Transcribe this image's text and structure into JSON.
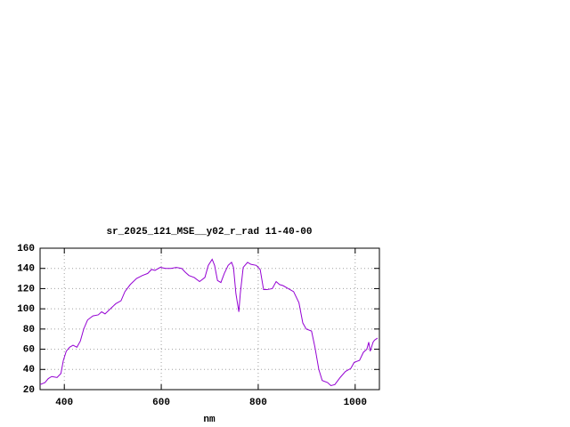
{
  "chart_data": {
    "type": "line",
    "title": "sr_2025_121_MSE__y02_r_rad 11-40-00",
    "x_label": "nm",
    "xlim": [
      350,
      1050
    ],
    "xticks": [
      400,
      600,
      800,
      1000
    ],
    "ylim": [
      20,
      160
    ],
    "yticks": [
      20,
      40,
      60,
      80,
      100,
      120,
      140,
      160
    ],
    "grid": true,
    "series": [
      {
        "color": "#9400d3",
        "x": [
          350,
          360,
          367,
          374,
          385,
          393,
          398,
          404,
          411,
          418,
          426,
          433,
          440,
          448,
          459,
          470,
          477,
          484,
          495,
          506,
          517,
          525,
          536,
          549,
          561,
          572,
          580,
          587,
          598,
          609,
          620,
          631,
          642,
          650,
          657,
          668,
          679,
          690,
          697,
          705,
          710,
          716,
          723,
          730,
          738,
          745,
          749,
          754,
          760,
          763,
          769,
          778,
          785,
          796,
          804,
          811,
          818,
          829,
          837,
          844,
          851,
          862,
          873,
          884,
          892,
          899,
          910,
          917,
          925,
          932,
          943,
          950,
          958,
          969,
          980,
          991,
          998,
          1009,
          1017,
          1024,
          1028,
          1031,
          1037,
          1040,
          1046
        ],
        "values": [
          25,
          27,
          31,
          33,
          32,
          36,
          49,
          58,
          62,
          64,
          62,
          68,
          80,
          89,
          93,
          94,
          97,
          95,
          100,
          105,
          108,
          117,
          124,
          130,
          133,
          135,
          139,
          138,
          141,
          140,
          140,
          141,
          140,
          136,
          133,
          131,
          127,
          131,
          143,
          149,
          143,
          128,
          126,
          135,
          143,
          146,
          141,
          115,
          97,
          115,
          141,
          146,
          144,
          143,
          139,
          119,
          119,
          120,
          127,
          124,
          123,
          120,
          117,
          106,
          86,
          80,
          78,
          62,
          40,
          29,
          27,
          24,
          25,
          32,
          38,
          41,
          47,
          49,
          57,
          60,
          67,
          58,
          67,
          69,
          71
        ]
      }
    ]
  }
}
